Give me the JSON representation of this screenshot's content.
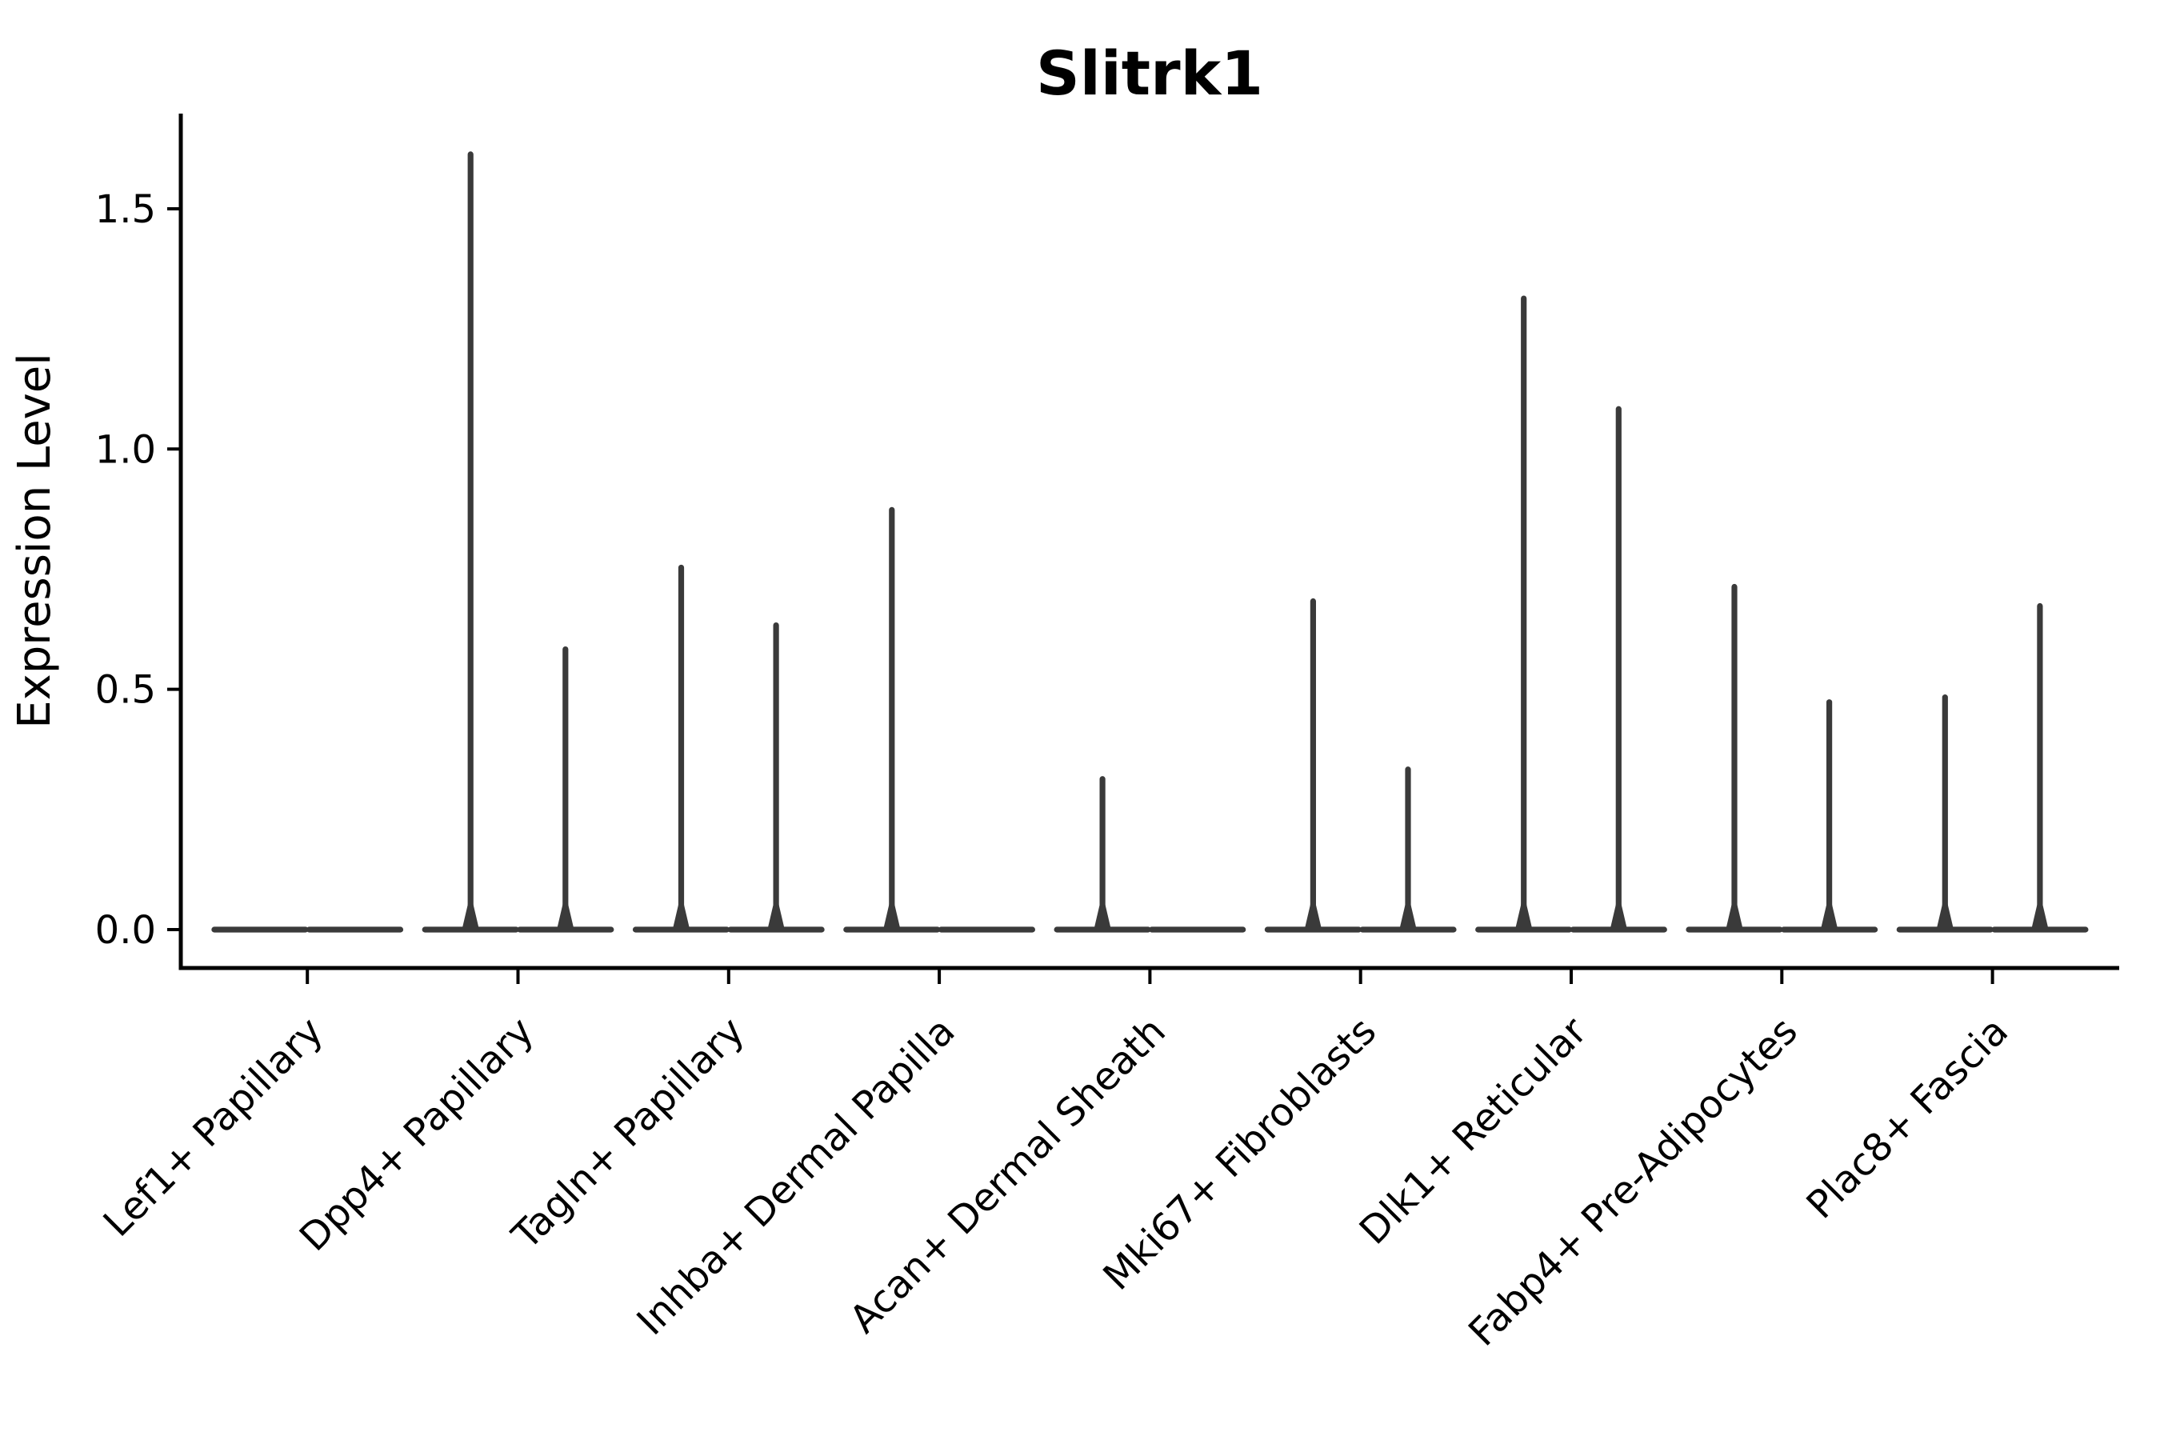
{
  "chart_data": {
    "type": "violin",
    "title": "Slitrk1",
    "ylabel": "Expression Level",
    "xlabel": "",
    "categories": [
      "Lef1+ Papillary",
      "Dpp4+ Papillary",
      "Tagln+ Papillary",
      "Inhba+ Dermal Papilla",
      "Acan+ Dermal Sheath",
      "Mki67+ Fibroblasts",
      "Dlk1+ Reticular",
      "Fabp4+ Pre-Adipocytes",
      "Plac8+ Fascia"
    ],
    "violins_per_category": 2,
    "series": [
      {
        "name": "left-violin",
        "max_expression": [
          0,
          1.62,
          0.76,
          0.88,
          0.32,
          0.69,
          1.32,
          0.72,
          0.49
        ]
      },
      {
        "name": "right-violin",
        "max_expression": [
          0,
          0.59,
          0.64,
          0,
          0,
          0.34,
          1.09,
          0.48,
          0.68
        ]
      }
    ],
    "ytick_labels": [
      "0.0",
      "0.5",
      "1.0",
      "1.5"
    ],
    "ytick_values": [
      0,
      0.5,
      1.0,
      1.5
    ],
    "ylim": [
      -0.08,
      1.7
    ],
    "legend": "none",
    "grid": false,
    "style": {
      "violin_color": "#3a3a3a",
      "axis_color": "#000000",
      "background": "#ffffff",
      "xtick_label_rotation_deg": 45
    }
  }
}
